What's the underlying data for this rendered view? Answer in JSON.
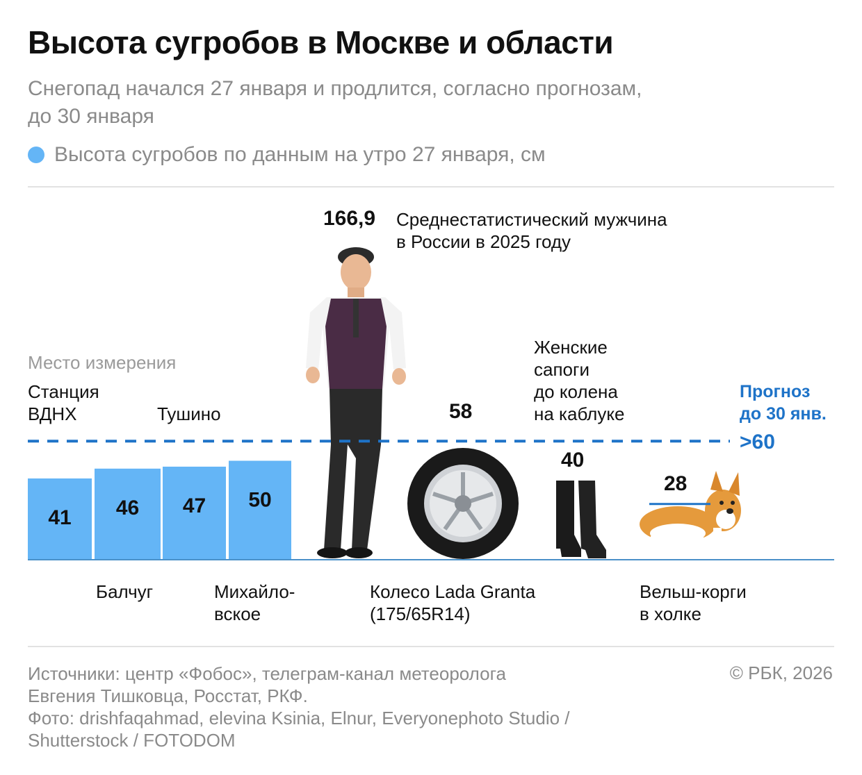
{
  "header": {
    "title": "Высота сугробов в Москве и области",
    "subtitle": "Снегопад начался 27 января и продлится, согласно прогнозам,\nдо 30 января",
    "legend_label": "Высота сугробов по данным на утро 27 января, см"
  },
  "labels": {
    "place_caption": "Место измерения",
    "forecast_label": "Прогноз\nдо 30 янв.",
    "forecast_value": ">60"
  },
  "references": {
    "man": {
      "value": "166,9",
      "label": "Среднестатистический мужчина\nв России в 2025 году"
    },
    "wheel": {
      "value": "58",
      "label": "Колесо Lada Granta\n(175/65R14)"
    },
    "boots": {
      "value": "40",
      "label": "Женские\nсапоги\nдо колена\nна каблуке"
    },
    "corgi": {
      "value": "28",
      "label": "Вельш-корги\nв холке"
    }
  },
  "chart_data": {
    "type": "bar",
    "categories": [
      "Станция\nВДНХ",
      "Балчуг",
      "Тушино",
      "Михайло-\nвское"
    ],
    "values": [
      41,
      46,
      47,
      50
    ],
    "unit": "см",
    "forecast_threshold": 60,
    "bar_color": "#64b5f6",
    "forecast_color": "#1e73c8"
  },
  "footer": {
    "sources": "Источники: центр «Фобос», телеграм-канал метеоролога\nЕвгения Тишковца, Росстат, РКФ.\nФото: drishfaqahmad, elevina Ksinia, Elnur, Everyonephoto Studio  /\nShutterstock / FOTODOM",
    "copyright": "© РБК, 2026"
  }
}
